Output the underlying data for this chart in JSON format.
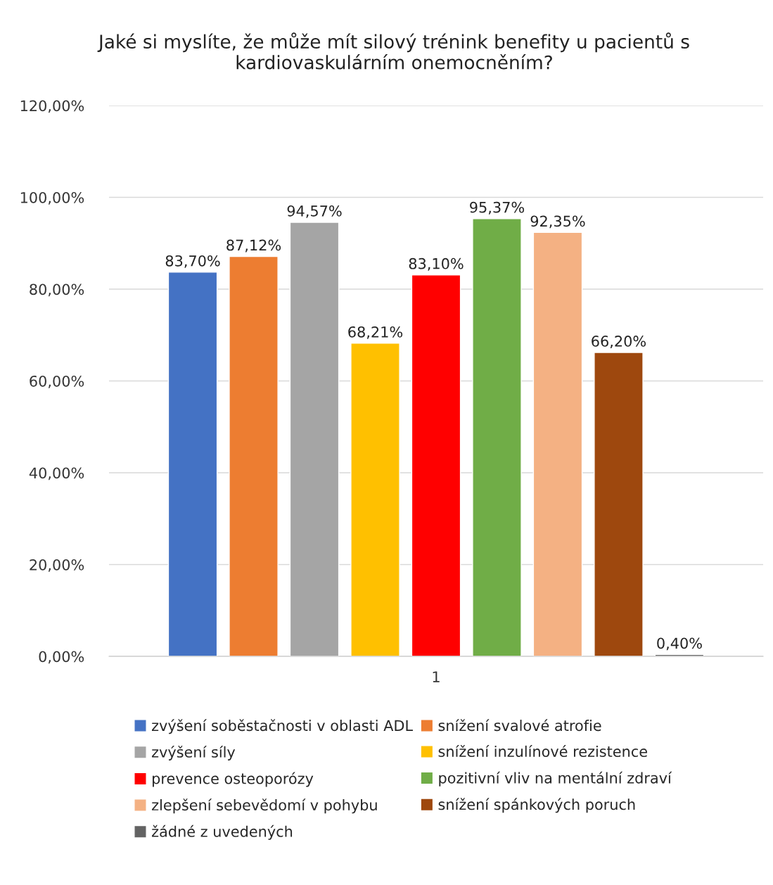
{
  "chart_data": {
    "type": "bar",
    "title": "Jaké si myslíte, že může mít silový trénink benefity u pacientů s kardiovaskulárním onemocněním?",
    "categories": [
      "1"
    ],
    "series": [
      {
        "name": "zvýšení soběstačnosti v oblasti ADL",
        "color": "#4472c4",
        "values": [
          83.7
        ],
        "value_labels": [
          "83,70%"
        ]
      },
      {
        "name": "snížení svalové atrofie",
        "color": "#ed7d31",
        "values": [
          87.12
        ],
        "value_labels": [
          "87,12%"
        ]
      },
      {
        "name": "zvýšení síly",
        "color": "#a5a5a5",
        "values": [
          94.57
        ],
        "value_labels": [
          "94,57%"
        ]
      },
      {
        "name": "snížení inzulínové rezistence",
        "color": "#ffc000",
        "values": [
          68.21
        ],
        "value_labels": [
          "68,21%"
        ]
      },
      {
        "name": "prevence osteoporózy",
        "color": "#ff0000",
        "values": [
          83.1
        ],
        "value_labels": [
          "83,10%"
        ]
      },
      {
        "name": "pozitivní vliv na mentální zdraví",
        "color": "#70ad47",
        "values": [
          95.37
        ],
        "value_labels": [
          "95,37%"
        ]
      },
      {
        "name": "zlepšení sebevědomí v pohybu",
        "color": "#f4b183",
        "values": [
          92.35
        ],
        "value_labels": [
          "92,35%"
        ]
      },
      {
        "name": "snížení spánkových poruch",
        "color": "#9e480e",
        "values": [
          66.2
        ],
        "value_labels": [
          "66,20%"
        ]
      },
      {
        "name": "žádné z uvedených",
        "color": "#636363",
        "values": [
          0.4
        ],
        "value_labels": [
          "0,40%"
        ]
      }
    ],
    "ylim": [
      0,
      120
    ],
    "yticks": [
      {
        "value": 0,
        "label": "0,00%"
      },
      {
        "value": 20,
        "label": "20,00%"
      },
      {
        "value": 40,
        "label": "40,00%"
      },
      {
        "value": 60,
        "label": "60,00%"
      },
      {
        "value": 80,
        "label": "80,00%"
      },
      {
        "value": 100,
        "label": "100,00%"
      },
      {
        "value": 120,
        "label": "120,00%"
      }
    ],
    "grid": "y",
    "legend": "bottom"
  }
}
